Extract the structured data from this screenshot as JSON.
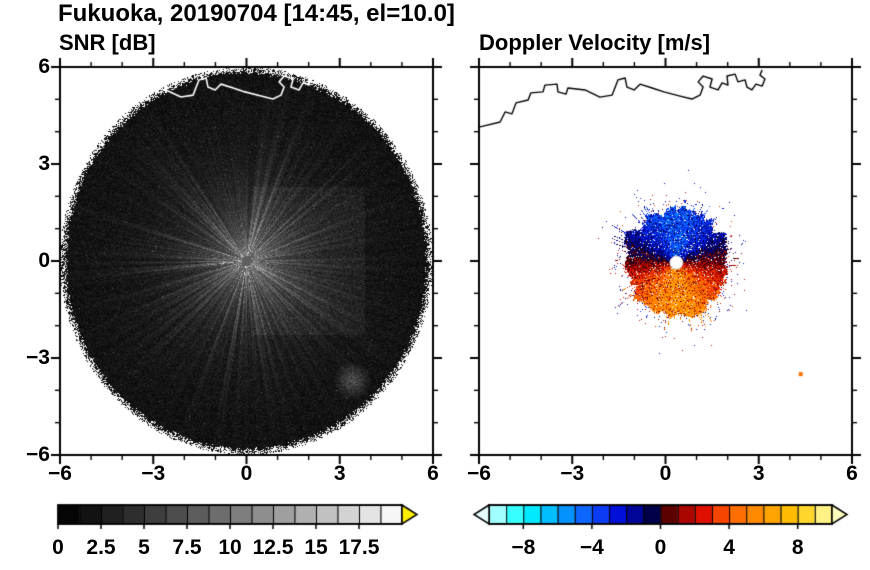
{
  "title": "Fukuoka, 20190704 [14:45, el=10.0]",
  "panels": {
    "left": {
      "title": "SNR [dB]"
    },
    "right": {
      "title": "Doppler Velocity [m/s]"
    }
  },
  "chart_data": [
    {
      "type": "heatmap",
      "name": "snr_ppi",
      "title": "SNR [dB]",
      "xlim": [
        -6,
        6
      ],
      "ylim": [
        -6,
        6
      ],
      "xticks": [
        -6,
        -3,
        0,
        3,
        6
      ],
      "xtick_labels": [
        "−6",
        "−3",
        "0",
        "3",
        "6"
      ],
      "yticks": [
        6,
        3,
        0,
        -3,
        -6
      ],
      "ytick_labels": [
        "6",
        "3",
        "0",
        "−3",
        "−6"
      ],
      "minor_tick_interval": 1,
      "grid": false,
      "scan": {
        "center": [
          0,
          0
        ],
        "radius": 6,
        "style": "dark speckle disk with bright radial rays near center",
        "center_marker_color": "#5a5a5a",
        "bright_sector": {
          "x_range": [
            0.2,
            3.8
          ],
          "y_range": [
            -2.3,
            2.3
          ]
        },
        "echo_patch": {
          "center": [
            3.4,
            -3.7
          ],
          "radius": 0.6
        }
      },
      "colorbar": {
        "range": [
          0,
          20
        ],
        "segments": 16,
        "tick_values": [
          0,
          2.5,
          5,
          7.5,
          10,
          12.5,
          15,
          17.5
        ],
        "tick_labels": [
          "0",
          "2.5",
          "5",
          "7.5",
          "10",
          "12.5",
          "15",
          "17.5"
        ],
        "colormap": "grayscale",
        "over_arrow_color": "#ffee00"
      }
    },
    {
      "type": "heatmap",
      "name": "doppler_velocity_ppi",
      "title": "Doppler Velocity [m/s]",
      "xlim": [
        -6,
        6
      ],
      "ylim": [
        -6,
        6
      ],
      "xticks": [
        -6,
        -3,
        0,
        3,
        6
      ],
      "xtick_labels": [
        "−6",
        "−3",
        "0",
        "3",
        "6"
      ],
      "minor_tick_interval": 1,
      "grid": false,
      "echo": {
        "center": [
          0.35,
          -0.05
        ],
        "mean_radius": 1.7,
        "north_side": "negative velocities (blue, toward radar)",
        "south_side": "positive velocities (orange/red, away from radar)",
        "center_marker_color": "#ffffff",
        "outlier_point": {
          "pos": [
            4.35,
            -3.5
          ],
          "color": "#ff7000"
        }
      },
      "colorbar": {
        "range": [
          -10,
          10
        ],
        "segments": 20,
        "tick_values": [
          -8,
          -4,
          0,
          4,
          8
        ],
        "tick_labels": [
          "−8",
          "−4",
          "0",
          "4",
          "8"
        ],
        "stops": [
          [
            -10,
            "#d8ffff"
          ],
          [
            -8,
            "#00ffff"
          ],
          [
            -6,
            "#00a8ff"
          ],
          [
            -4,
            "#1050ff"
          ],
          [
            -2.5,
            "#0010d8"
          ],
          [
            -1,
            "#000078"
          ],
          [
            -0.15,
            "#000028"
          ],
          [
            0.15,
            "#380000"
          ],
          [
            1,
            "#900000"
          ],
          [
            2.5,
            "#e01000"
          ],
          [
            4,
            "#ff6000"
          ],
          [
            6,
            "#ff9800"
          ],
          [
            8,
            "#ffc800"
          ],
          [
            10,
            "#ffffb0"
          ]
        ],
        "under_arrow_color": "#e8ffff",
        "over_arrow_color": "#ffffc0"
      }
    }
  ],
  "coastline": [
    [
      -6.0,
      4.14
    ],
    [
      -5.32,
      4.3
    ],
    [
      -5.16,
      4.61
    ],
    [
      -4.94,
      4.55
    ],
    [
      -4.81,
      4.89
    ],
    [
      -4.42,
      4.98
    ],
    [
      -4.33,
      5.2
    ],
    [
      -3.94,
      5.23
    ],
    [
      -3.88,
      5.44
    ],
    [
      -3.49,
      5.47
    ],
    [
      -3.46,
      5.23
    ],
    [
      -3.2,
      5.16
    ],
    [
      -3.14,
      5.35
    ],
    [
      -2.59,
      5.29
    ],
    [
      -2.11,
      5.07
    ],
    [
      -1.72,
      5.13
    ],
    [
      -1.53,
      5.6
    ],
    [
      -1.3,
      5.66
    ],
    [
      -1.24,
      5.38
    ],
    [
      -1.01,
      5.29
    ],
    [
      -0.82,
      5.47
    ],
    [
      -0.43,
      5.35
    ],
    [
      -0.05,
      5.23
    ],
    [
      0.47,
      5.1
    ],
    [
      0.85,
      5.01
    ],
    [
      1.11,
      5.13
    ],
    [
      1.21,
      5.38
    ],
    [
      1.05,
      5.54
    ],
    [
      1.21,
      5.72
    ],
    [
      1.5,
      5.63
    ],
    [
      1.43,
      5.38
    ],
    [
      1.69,
      5.29
    ],
    [
      1.82,
      5.51
    ],
    [
      2.01,
      5.44
    ],
    [
      1.98,
      5.72
    ],
    [
      2.24,
      5.78
    ],
    [
      2.33,
      5.54
    ],
    [
      2.56,
      5.6
    ],
    [
      2.62,
      5.38
    ],
    [
      2.78,
      5.29
    ],
    [
      2.91,
      5.47
    ],
    [
      3.11,
      5.41
    ],
    [
      3.2,
      5.63
    ],
    [
      3.04,
      5.75
    ],
    [
      3.11,
      5.91
    ]
  ]
}
